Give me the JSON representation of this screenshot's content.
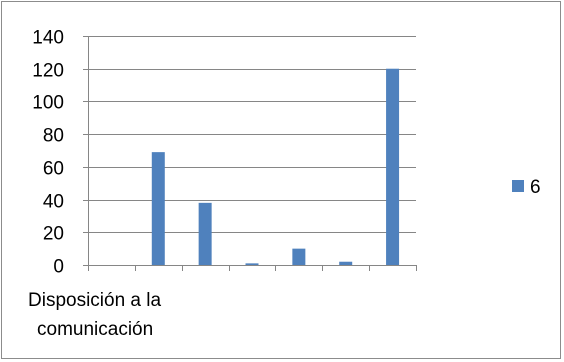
{
  "chart_data": {
    "type": "bar",
    "categories": [
      "Disposición a la comunicación",
      "",
      "",
      "",
      "",
      "",
      ""
    ],
    "category_label_lines": [
      "Disposición a la",
      "comunicación"
    ],
    "series": [
      {
        "name": "6",
        "values": [
          0,
          69,
          38,
          1,
          10,
          2,
          120
        ],
        "color": "#4f81bd"
      }
    ],
    "ylim": [
      0,
      140
    ],
    "yticks": [
      0,
      20,
      40,
      60,
      80,
      100,
      120,
      140
    ],
    "grid": true,
    "legend": "right",
    "title": "",
    "xlabel": "",
    "ylabel": ""
  }
}
